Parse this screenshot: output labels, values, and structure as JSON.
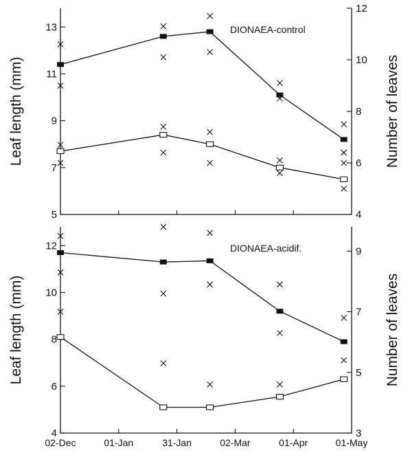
{
  "chart_data": [
    {
      "type": "line",
      "annotation": "DIONAEA-control",
      "ylabel": "Leaf length (mm)",
      "y2label": "Number of leaves",
      "x": [
        "02-Dec",
        "01-Jan",
        "31-Jan",
        "02-Mar",
        "01-Apr",
        "01-May"
      ],
      "ylim": [
        5,
        13.8
      ],
      "yticks": [
        5,
        7,
        9,
        11,
        13
      ],
      "y2lim": [
        4,
        12
      ],
      "y2ticks": [
        4,
        6,
        8,
        10,
        12
      ],
      "series": [
        {
          "marker": "filled-square",
          "x": [
            "02-Dec",
            "24-Jan",
            "17-Feb",
            "25-Mar",
            "27-Apr"
          ],
          "values": [
            11.4,
            12.6,
            12.8,
            10.1,
            8.2
          ]
        },
        {
          "marker": "open-square",
          "x": [
            "02-Dec",
            "24-Jan",
            "17-Feb",
            "25-Mar",
            "27-Apr"
          ],
          "values": [
            7.7,
            8.4,
            8.0,
            7.0,
            6.5
          ]
        },
        {
          "marker": "x",
          "axis": "right",
          "x": [
            "02-Dec",
            "02-Dec",
            "24-Jan",
            "24-Jan",
            "17-Feb",
            "17-Feb",
            "25-Mar",
            "25-Mar",
            "27-Apr",
            "27-Apr"
          ],
          "values": [
            10.6,
            9.0,
            11.3,
            10.1,
            11.7,
            10.3,
            9.1,
            8.5,
            7.5,
            6.4
          ]
        },
        {
          "marker": "x",
          "axis": "right",
          "x": [
            "02-Dec",
            "02-Dec",
            "24-Jan",
            "24-Jan",
            "17-Feb",
            "17-Feb",
            "25-Mar",
            "25-Mar",
            "27-Apr",
            "27-Apr",
            "27-Apr"
          ],
          "values": [
            6.7,
            6.0,
            7.4,
            6.4,
            7.2,
            6.0,
            6.1,
            5.6,
            6.4,
            6.0,
            5.0
          ]
        }
      ]
    },
    {
      "type": "line",
      "annotation": "DIONAEA-acidif.",
      "ylabel": "Leaf length (mm)",
      "y2label": "Number of leaves",
      "x": [
        "02-Dec",
        "01-Jan",
        "31-Jan",
        "02-Mar",
        "01-Apr",
        "01-May"
      ],
      "ylim": [
        4,
        12.8
      ],
      "yticks": [
        4,
        6,
        8,
        10,
        12
      ],
      "y2lim": [
        3,
        9.8
      ],
      "y2ticks": [
        3,
        5,
        7,
        9
      ],
      "series": [
        {
          "marker": "filled-square",
          "x": [
            "02-Dec",
            "24-Jan",
            "17-Feb",
            "25-Mar",
            "27-Apr"
          ],
          "values": [
            11.7,
            11.3,
            11.35,
            9.2,
            7.9
          ]
        },
        {
          "marker": "open-square",
          "x": [
            "02-Dec",
            "24-Jan",
            "17-Feb",
            "25-Mar",
            "27-Apr"
          ],
          "values": [
            8.1,
            5.1,
            5.1,
            5.55,
            6.3
          ]
        },
        {
          "marker": "x",
          "axis": "right",
          "x": [
            "02-Dec",
            "02-Dec",
            "24-Jan",
            "24-Jan",
            "17-Feb",
            "17-Feb",
            "25-Mar",
            "25-Mar",
            "27-Apr"
          ],
          "values": [
            9.5,
            8.3,
            9.8,
            7.6,
            9.6,
            7.9,
            7.9,
            6.3,
            6.8
          ]
        },
        {
          "marker": "x",
          "axis": "right",
          "x": [
            "02-Dec",
            "24-Jan",
            "17-Feb",
            "25-Mar",
            "27-Apr"
          ],
          "values": [
            7.0,
            5.3,
            4.6,
            4.6,
            5.4
          ]
        }
      ]
    }
  ]
}
